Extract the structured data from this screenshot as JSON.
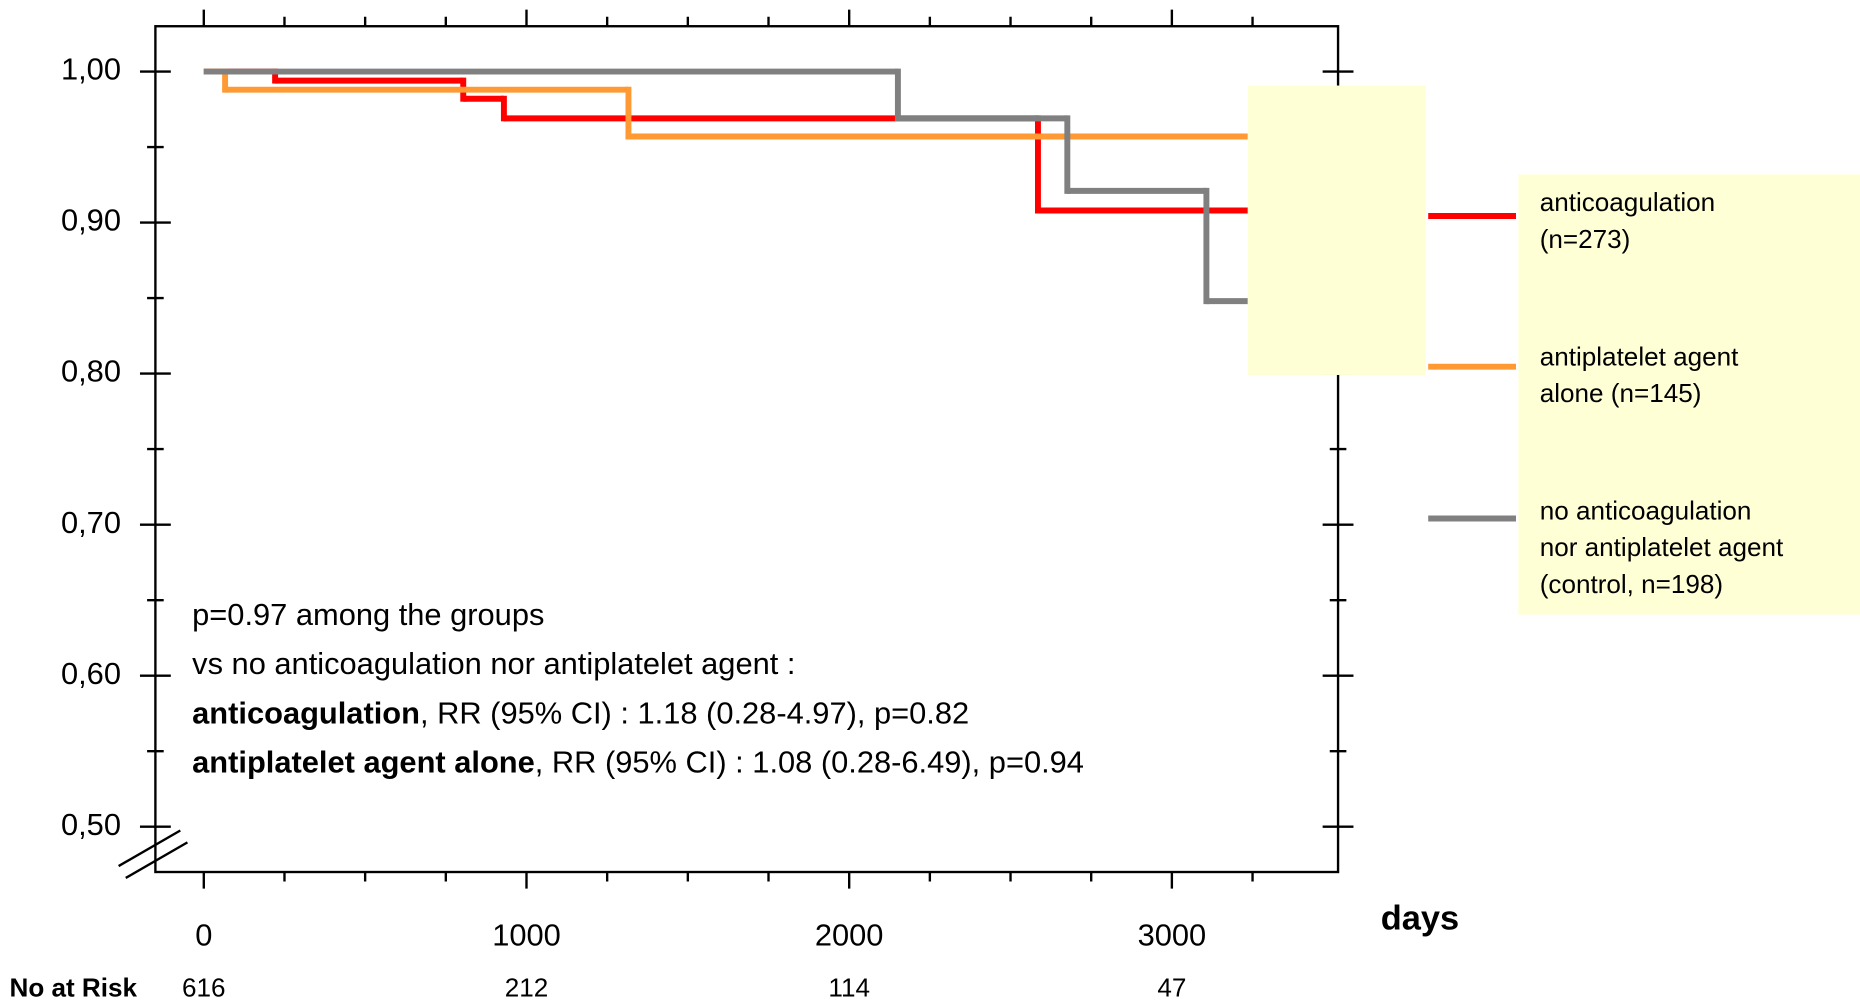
{
  "chart_data": {
    "type": "step",
    "xlim": [
      -150,
      3515
    ],
    "ylim": [
      0.47,
      1.03
    ],
    "xticks": [
      0,
      1000,
      2000,
      3000
    ],
    "xticks_minor": [
      250,
      500,
      750,
      1250,
      1500,
      1750,
      2250,
      2500,
      2750,
      3250
    ],
    "yticks": [
      {
        "value": 0.5,
        "label": "0,50"
      },
      {
        "value": 0.6,
        "label": "0,60"
      },
      {
        "value": 0.7,
        "label": "0,70"
      },
      {
        "value": 0.8,
        "label": "0,80"
      },
      {
        "value": 0.9,
        "label": "0,90"
      },
      {
        "value": 1.0,
        "label": "1,00"
      }
    ],
    "yticks_minor": [
      0.55,
      0.65,
      0.75,
      0.85,
      0.95
    ],
    "x_label": "days",
    "series": [
      {
        "name": [
          "anticoagulation",
          "(n=273)"
        ],
        "color": "#ff0000",
        "x": [
          0,
          221,
          804,
          930,
          2585,
          3235
        ],
        "values": [
          1.0,
          0.994,
          0.982,
          0.969,
          0.908,
          0.908
        ]
      },
      {
        "name": [
          "antiplatelet agent",
          "alone (n=145)"
        ],
        "color": "#ff9933",
        "x": [
          0,
          66,
          1316,
          3235
        ],
        "values": [
          1.0,
          0.988,
          0.957,
          0.957
        ]
      },
      {
        "name": [
          "no anticoagulation",
          "nor antiplatelet agent",
          "(control, n=198)"
        ],
        "color": "#808080",
        "x": [
          0,
          2151,
          2676,
          3107,
          3235
        ],
        "values": [
          1.0,
          0.969,
          0.921,
          0.848,
          0.848
        ]
      }
    ],
    "annotations": [
      {
        "text": "p=0.97 among the groups"
      },
      {
        "text": "vs no anticoagulation nor antiplatelet agent :"
      },
      {
        "bold": "anticoagulation",
        "text": ", RR (95% CI) : 1.18 (0.28-4.97), p=0.82"
      },
      {
        "bold": "antiplatelet agent alone",
        "text": ", RR (95% CI) : 1.08 (0.28-6.49), p=0.94"
      }
    ],
    "risk_table": {
      "label": "No at Risk",
      "values": [
        616,
        212,
        114,
        47
      ]
    }
  }
}
